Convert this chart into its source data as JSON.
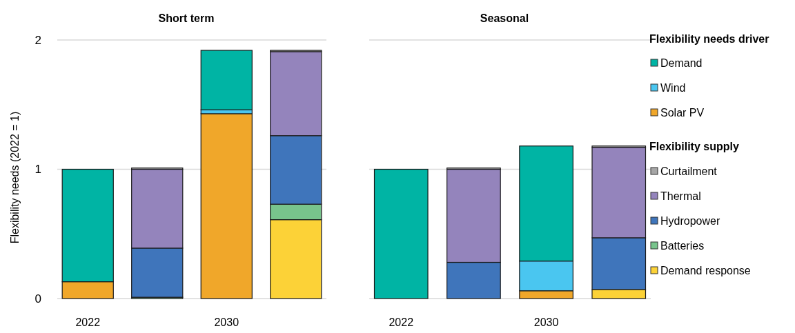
{
  "chart_data": [
    {
      "type": "bar",
      "title": "Short term",
      "ylabel": "Flexibility needs (2022 = 1)",
      "stacked": true,
      "categories": [
        "2022",
        null,
        "2030",
        null
      ],
      "ylim": [
        0,
        2
      ],
      "yticks": [
        0,
        1,
        2
      ],
      "grid": "y",
      "series": [
        {
          "color": "#f0a72a",
          "values": [
            0.13,
            null,
            1.43,
            null
          ]
        },
        {
          "color": "#4ac6f0",
          "values": [
            0,
            null,
            0.03,
            null
          ]
        },
        {
          "color": "#00b4a4",
          "values": [
            0.87,
            null,
            0.46,
            null
          ]
        },
        {
          "color": "#fcd237",
          "values": [
            null,
            0,
            null,
            0.61
          ]
        },
        {
          "color": "#78c48c",
          "values": [
            null,
            0.01,
            null,
            0.12
          ]
        },
        {
          "color": "#3f75bb",
          "values": [
            null,
            0.38,
            null,
            0.53
          ]
        },
        {
          "color": "#9484bc",
          "values": [
            null,
            0.61,
            null,
            0.65
          ]
        },
        {
          "color": "#a6a6a6",
          "values": [
            null,
            0.01,
            null,
            0.01
          ]
        }
      ]
    },
    {
      "type": "bar",
      "title": "Seasonal",
      "stacked": true,
      "categories": [
        "2022",
        null,
        "2030",
        null
      ],
      "ylim": [
        0,
        2
      ],
      "yticks": [
        0,
        1,
        2
      ],
      "grid": "y",
      "tick_labels": "x",
      "legend": "right",
      "legend_title": "Flexibility needs driver",
      "annotations": [
        "Flexibility supply"
      ],
      "series": [
        {
          "name": "Solar PV",
          "color": "#f0a72a",
          "values": [
            0,
            null,
            0.06,
            null
          ]
        },
        {
          "name": "Wind",
          "color": "#4ac6f0",
          "values": [
            0,
            null,
            0.23,
            null
          ]
        },
        {
          "name": "Demand",
          "color": "#00b4a4",
          "values": [
            1.0,
            null,
            0.89,
            null
          ]
        },
        {
          "name": "Demand response",
          "color": "#fcd237",
          "values": [
            null,
            0,
            null,
            0.07
          ]
        },
        {
          "name": "Batteries",
          "color": "#78c48c",
          "values": [
            null,
            0,
            null,
            0
          ]
        },
        {
          "name": "Hydropower",
          "color": "#3f75bb",
          "values": [
            null,
            0.28,
            null,
            0.4
          ]
        },
        {
          "name": "Thermal",
          "color": "#9484bc",
          "values": [
            null,
            0.72,
            null,
            0.7
          ]
        },
        {
          "name": "Curtailment",
          "color": "#a6a6a6",
          "values": [
            null,
            0.01,
            null,
            0.01
          ]
        }
      ]
    }
  ]
}
